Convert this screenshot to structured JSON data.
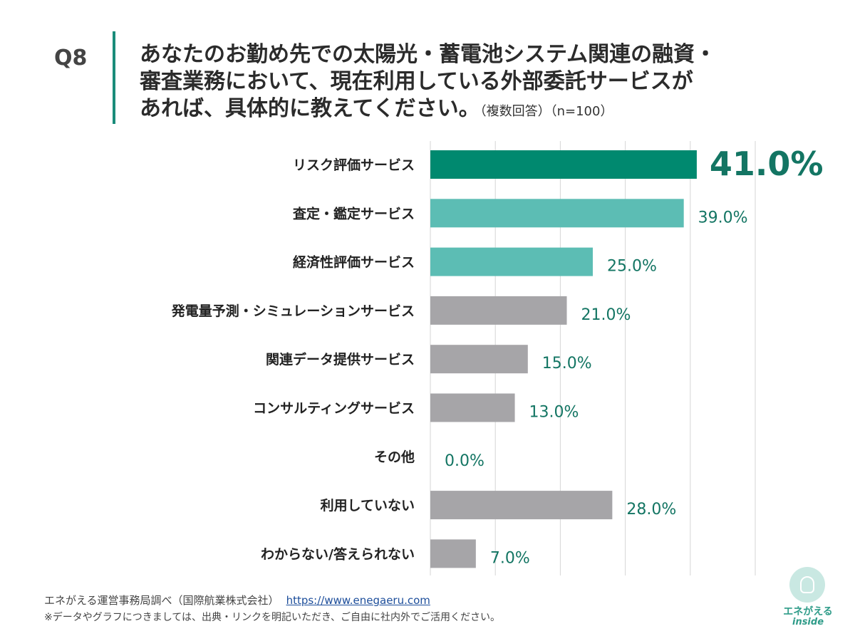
{
  "header": {
    "qnum": "Q8",
    "line1": "あなたのお勤め先での太陽光・蓄電池システム関連の融資・",
    "line2": "審査業務において、現在利用している外部委託サービスが",
    "line3": "あれば、具体的に教えてください。",
    "note": "（複数回答）（n=100）"
  },
  "chart_data": {
    "type": "bar",
    "orientation": "horizontal",
    "categories": [
      "リスク評価サービス",
      "査定・鑑定サービス",
      "経済性評価サービス",
      "発電量予測・シミュレーションサービス",
      "関連データ提供サービス",
      "コンサルティングサービス",
      "その他",
      "利用していない",
      "わからない/答えられない"
    ],
    "values": [
      41.0,
      39.0,
      25.0,
      21.0,
      15.0,
      13.0,
      0.0,
      28.0,
      7.0
    ],
    "value_labels": [
      "41.0%",
      "39.0%",
      "25.0%",
      "21.0%",
      "15.0%",
      "13.0%",
      "0.0%",
      "28.0%",
      "7.0%"
    ],
    "xlim": [
      0,
      50
    ],
    "gridlines": true,
    "highlight_index": 0,
    "colors": {
      "highlight": "#00896f",
      "secondary": "#5cbdb4",
      "other": "#a6a5a8",
      "label": "#137563"
    },
    "bar_color_groups": [
      "highlight",
      "secondary",
      "secondary",
      "other",
      "other",
      "other",
      "other",
      "other",
      "other"
    ]
  },
  "footer": {
    "source": "エネがえる運営事務局調べ（国際航業株式会社）",
    "url": "https://www.enegaeru.com",
    "note": "※データやグラフにつきましては、出典・リンクを明記いただき、ご自由に社内外でご活用ください。"
  },
  "logo": {
    "name": "エネがえる",
    "sub": "inside"
  }
}
